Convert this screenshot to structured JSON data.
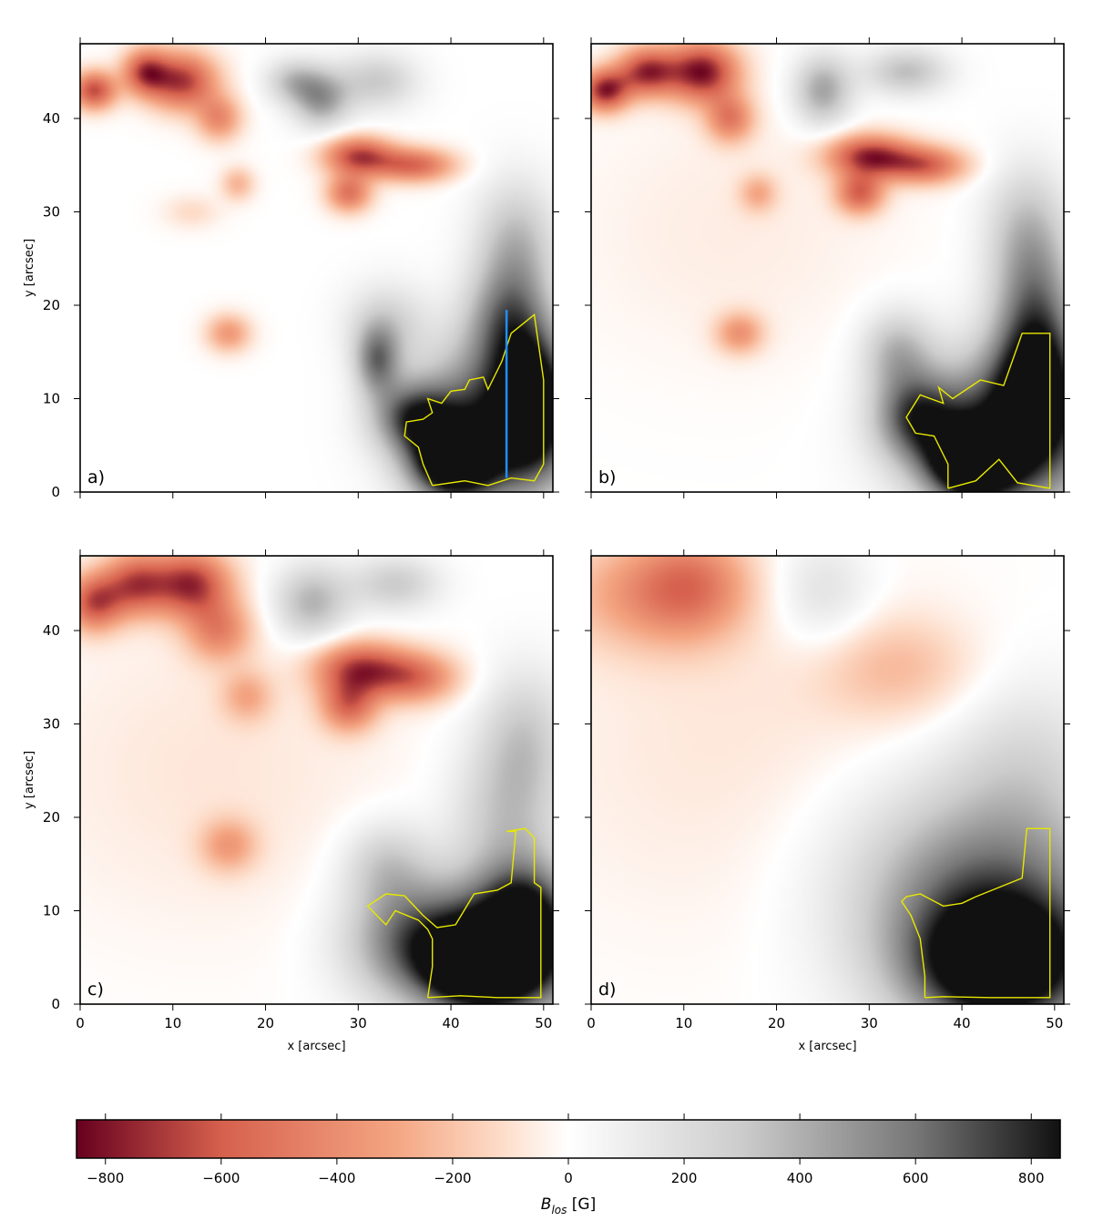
{
  "chart_data": {
    "type": "heatmap",
    "quantity": "B_los",
    "units": "G",
    "colormap": {
      "vmin": -850,
      "vmax": 850,
      "stops": [
        {
          "value": -850,
          "color": "#67001f"
        },
        {
          "value": -600,
          "color": "#d6604d"
        },
        {
          "value": -300,
          "color": "#f4a582"
        },
        {
          "value": -120,
          "color": "#fddbc7"
        },
        {
          "value": 0,
          "color": "#ffffff"
        },
        {
          "value": 300,
          "color": "#cccccc"
        },
        {
          "value": 600,
          "color": "#777777"
        },
        {
          "value": 850,
          "color": "#111111"
        }
      ],
      "ticks": [
        -800,
        -600,
        -400,
        -200,
        0,
        200,
        400,
        600,
        800
      ],
      "tick_labels": [
        "−800",
        "−600",
        "−400",
        "−200",
        "0",
        "200",
        "400",
        "600",
        "800"
      ],
      "label": {
        "symbol": "B",
        "subscript": "los",
        "unit": "[G]"
      }
    },
    "xlabel": "x [arcsec]",
    "ylabel": "y [arcsec]",
    "xlim": [
      0,
      51
    ],
    "ylim": [
      0,
      48
    ],
    "xticks": [
      0,
      10,
      20,
      30,
      40,
      50
    ],
    "yticks": [
      0,
      10,
      20,
      30,
      40
    ],
    "contour_color": "#e8e800",
    "slit_color": "#1e90ff",
    "slit": {
      "panel": "a)",
      "x": 46,
      "y": [
        1.5,
        19.5
      ]
    },
    "panels": [
      {
        "label": "a)",
        "smooth": 0.8,
        "features": [
          {
            "x": 45,
            "y": 7,
            "sx": 6,
            "sy": 6,
            "B": 820
          },
          {
            "x": 40,
            "y": 3,
            "sx": 3,
            "sy": 2.5,
            "B": 850
          },
          {
            "x": 49,
            "y": 10,
            "sx": 2.5,
            "sy": 5,
            "B": 650
          },
          {
            "x": 36,
            "y": 8,
            "sx": 3,
            "sy": 2.5,
            "B": 600
          },
          {
            "x": 32,
            "y": 14,
            "sx": 1.5,
            "sy": 2.5,
            "B": 500
          },
          {
            "x": 46,
            "y": 18,
            "sx": 3,
            "sy": 4,
            "B": 450
          },
          {
            "x": 47,
            "y": 26,
            "sx": 3,
            "sy": 5,
            "B": 380
          },
          {
            "x": 33,
            "y": 18,
            "sx": 3,
            "sy": 3,
            "B": 250
          },
          {
            "x": 26,
            "y": 42,
            "sx": 2,
            "sy": 2,
            "B": 450
          },
          {
            "x": 32,
            "y": 44,
            "sx": 3,
            "sy": 2,
            "B": 300
          },
          {
            "x": 23,
            "y": 44,
            "sx": 2,
            "sy": 1.5,
            "B": 320
          },
          {
            "x": 1.5,
            "y": 43,
            "sx": 1.5,
            "sy": 1.2,
            "B": -650
          },
          {
            "x": 7,
            "y": 45,
            "sx": 1.5,
            "sy": 1.5,
            "B": -600
          },
          {
            "x": 11,
            "y": 44,
            "sx": 2.5,
            "sy": 2,
            "B": -700
          },
          {
            "x": 15,
            "y": 40,
            "sx": 1.5,
            "sy": 1.5,
            "B": -400
          },
          {
            "x": 30,
            "y": 36,
            "sx": 2.5,
            "sy": 1.2,
            "B": -650
          },
          {
            "x": 36,
            "y": 35,
            "sx": 3,
            "sy": 1,
            "B": -550
          },
          {
            "x": 29,
            "y": 32,
            "sx": 1.5,
            "sy": 1.2,
            "B": -500
          },
          {
            "x": 16,
            "y": 17,
            "sx": 1.5,
            "sy": 1.2,
            "B": -350
          },
          {
            "x": 17,
            "y": 33,
            "sx": 1,
            "sy": 1,
            "B": -250
          },
          {
            "x": 12,
            "y": 30,
            "sx": 2,
            "sy": 1,
            "B": -120
          }
        ],
        "contour_x": [
          38,
          37,
          36.5,
          35,
          35.2,
          37,
          38,
          37.5,
          39,
          40,
          41.5,
          42,
          43.5,
          44,
          45.5,
          46.5,
          49,
          50,
          50,
          49,
          46.5,
          44,
          41.5,
          38
        ],
        "contour_y": [
          0.7,
          3,
          4.8,
          6,
          7.5,
          7.8,
          8.5,
          10,
          9.5,
          10.8,
          11,
          12,
          12.3,
          11,
          14,
          17,
          19,
          12,
          3,
          1.2,
          1.5,
          0.7,
          1.2,
          0.7
        ]
      },
      {
        "label": "b)",
        "smooth": 1.0,
        "features": [
          {
            "x": 45,
            "y": 6,
            "sx": 7,
            "sy": 6,
            "B": 820
          },
          {
            "x": 41,
            "y": 3,
            "sx": 3,
            "sy": 2.5,
            "B": 850
          },
          {
            "x": 48,
            "y": 12,
            "sx": 3,
            "sy": 5,
            "B": 650
          },
          {
            "x": 35,
            "y": 8,
            "sx": 3,
            "sy": 3,
            "B": 550
          },
          {
            "x": 48,
            "y": 20,
            "sx": 3,
            "sy": 5,
            "B": 400
          },
          {
            "x": 47,
            "y": 28,
            "sx": 3,
            "sy": 5,
            "B": 320
          },
          {
            "x": 33,
            "y": 15,
            "sx": 2.5,
            "sy": 3,
            "B": 350
          },
          {
            "x": 25,
            "y": 43,
            "sx": 2,
            "sy": 2.5,
            "B": 450
          },
          {
            "x": 34,
            "y": 45,
            "sx": 3,
            "sy": 1.5,
            "B": 350
          },
          {
            "x": 1.5,
            "y": 43,
            "sx": 1.5,
            "sy": 1.2,
            "B": -750
          },
          {
            "x": 6,
            "y": 45,
            "sx": 2,
            "sy": 1.5,
            "B": -700
          },
          {
            "x": 12,
            "y": 45,
            "sx": 2.5,
            "sy": 2,
            "B": -800
          },
          {
            "x": 15,
            "y": 40,
            "sx": 1.5,
            "sy": 1.5,
            "B": -450
          },
          {
            "x": 30,
            "y": 36,
            "sx": 3,
            "sy": 1.2,
            "B": -700
          },
          {
            "x": 36,
            "y": 35,
            "sx": 3,
            "sy": 1,
            "B": -550
          },
          {
            "x": 29,
            "y": 32,
            "sx": 1.5,
            "sy": 1.2,
            "B": -550
          },
          {
            "x": 16,
            "y": 17,
            "sx": 1.5,
            "sy": 1.2,
            "B": -350
          },
          {
            "x": 18,
            "y": 32,
            "sx": 1,
            "sy": 1,
            "B": -250
          },
          {
            "x": 15,
            "y": 28,
            "sx": 12,
            "sy": 10,
            "B": -60
          }
        ],
        "contour_x": [
          38.5,
          38.5,
          37,
          35,
          34,
          35.5,
          38,
          37.5,
          39,
          42,
          44.5,
          46.5,
          49.5,
          49.5,
          46,
          44,
          41.5,
          38.5
        ],
        "contour_y": [
          0.4,
          3,
          6,
          6.3,
          8,
          10.4,
          9.5,
          11.2,
          10,
          12,
          11.4,
          17,
          17,
          0.4,
          1,
          3.5,
          1.2,
          0.4
        ]
      },
      {
        "label": "c)",
        "smooth": 1.5,
        "features": [
          {
            "x": 45,
            "y": 5,
            "sx": 7,
            "sy": 5,
            "B": 820
          },
          {
            "x": 43,
            "y": 4,
            "sx": 3,
            "sy": 2,
            "B": 850
          },
          {
            "x": 48,
            "y": 9,
            "sx": 3,
            "sy": 4,
            "B": 600
          },
          {
            "x": 36,
            "y": 7,
            "sx": 5,
            "sy": 4,
            "B": 450
          },
          {
            "x": 46,
            "y": 20,
            "sx": 4,
            "sy": 6,
            "B": 300
          },
          {
            "x": 48,
            "y": 29,
            "sx": 3,
            "sy": 5,
            "B": 250
          },
          {
            "x": 33,
            "y": 15,
            "sx": 3,
            "sy": 3,
            "B": 280
          },
          {
            "x": 25,
            "y": 43,
            "sx": 2.5,
            "sy": 2.5,
            "B": 400
          },
          {
            "x": 34,
            "y": 45,
            "sx": 3,
            "sy": 1.5,
            "B": 300
          },
          {
            "x": 1.5,
            "y": 43,
            "sx": 1.5,
            "sy": 1.5,
            "B": -600
          },
          {
            "x": 6,
            "y": 45,
            "sx": 2,
            "sy": 1.8,
            "B": -600
          },
          {
            "x": 12,
            "y": 45,
            "sx": 2.5,
            "sy": 2,
            "B": -700
          },
          {
            "x": 15,
            "y": 40,
            "sx": 2,
            "sy": 1.8,
            "B": -400
          },
          {
            "x": 30,
            "y": 36,
            "sx": 3,
            "sy": 1.3,
            "B": -600
          },
          {
            "x": 36,
            "y": 35,
            "sx": 3,
            "sy": 1.2,
            "B": -500
          },
          {
            "x": 29,
            "y": 32,
            "sx": 1.5,
            "sy": 1.3,
            "B": -500
          },
          {
            "x": 16,
            "y": 17,
            "sx": 1.5,
            "sy": 1.3,
            "B": -300
          },
          {
            "x": 18,
            "y": 33,
            "sx": 1.2,
            "sy": 1.2,
            "B": -250
          },
          {
            "x": 14,
            "y": 25,
            "sx": 14,
            "sy": 12,
            "B": -80
          }
        ],
        "contour_x": [
          37.5,
          38,
          38,
          37.5,
          36.5,
          34,
          33,
          31,
          33,
          35,
          37,
          38.5,
          40.5,
          42.5,
          45,
          46.5,
          47,
          46,
          48,
          49,
          49,
          49.7,
          49.7,
          45,
          41,
          37.5
        ],
        "contour_y": [
          0.7,
          4,
          7,
          8,
          9,
          10,
          8.5,
          10.5,
          11.8,
          11.6,
          9.5,
          8.2,
          8.5,
          11.8,
          12.2,
          13,
          18.5,
          18.5,
          18.8,
          17.8,
          13,
          12.5,
          0.7,
          0.7,
          0.9,
          0.7
        ]
      },
      {
        "label": "d)",
        "smooth": 3.0,
        "features": [
          {
            "x": 44,
            "y": 7,
            "sx": 9,
            "sy": 7,
            "B": 650
          },
          {
            "x": 44,
            "y": 4,
            "sx": 5,
            "sy": 3,
            "B": 700
          },
          {
            "x": 40,
            "y": 16,
            "sx": 10,
            "sy": 7,
            "B": 250
          },
          {
            "x": 47,
            "y": 26,
            "sx": 5,
            "sy": 6,
            "B": 180
          },
          {
            "x": 25,
            "y": 44,
            "sx": 2.5,
            "sy": 3,
            "B": 200
          },
          {
            "x": 6,
            "y": 44,
            "sx": 6,
            "sy": 3,
            "B": -300
          },
          {
            "x": 11,
            "y": 45,
            "sx": 3,
            "sy": 2.5,
            "B": -320
          },
          {
            "x": 33,
            "y": 36,
            "sx": 5,
            "sy": 2.5,
            "B": -200
          },
          {
            "x": 16,
            "y": 28,
            "sx": 16,
            "sy": 14,
            "B": -80
          }
        ],
        "contour_x": [
          36,
          36,
          35.5,
          34.5,
          33.5,
          34,
          35.5,
          38,
          40,
          41.5,
          44,
          46.5,
          47,
          49.5,
          49.5,
          43,
          38,
          36
        ],
        "contour_y": [
          0.7,
          3,
          7,
          9.5,
          11,
          11.5,
          11.8,
          10.5,
          10.8,
          11.5,
          12.5,
          13.5,
          18.8,
          18.8,
          0.7,
          0.7,
          0.8,
          0.7
        ]
      }
    ]
  }
}
